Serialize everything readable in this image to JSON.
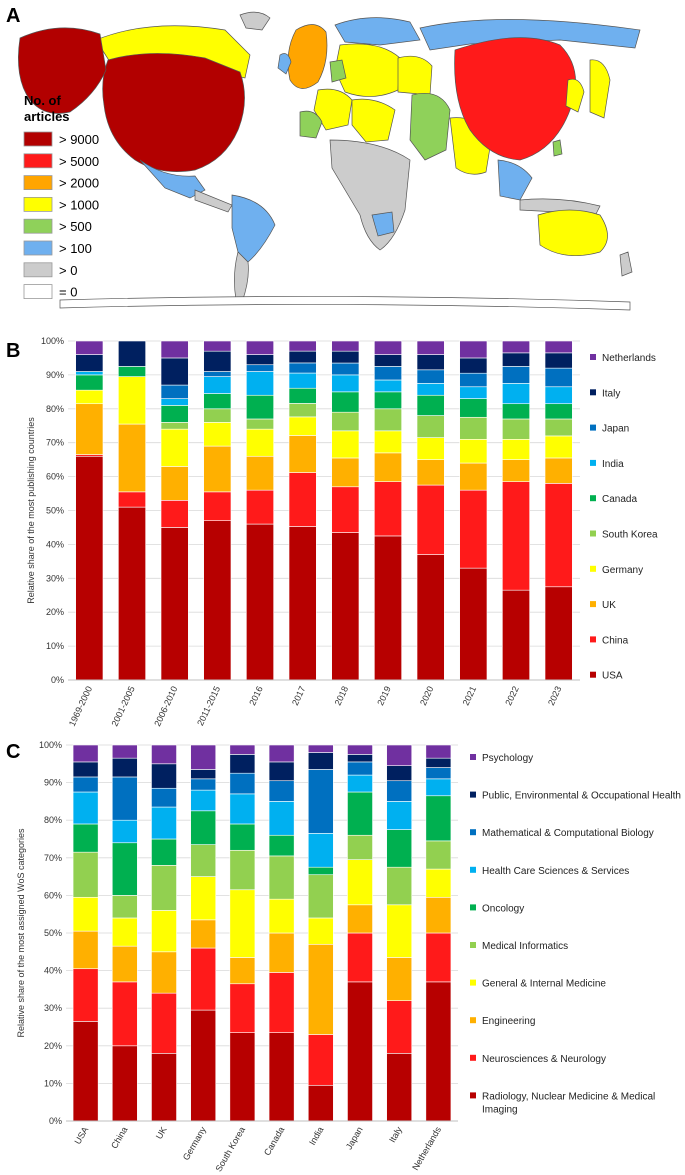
{
  "panels": {
    "a": "A",
    "b": "B",
    "c": "C"
  },
  "map_legend": {
    "title_line1": "No. of",
    "title_line2": "articles",
    "items": [
      {
        "label": "> 9000",
        "color": "#b20000"
      },
      {
        "label": "> 5000",
        "color": "#ff1a1a"
      },
      {
        "label": "> 2000",
        "color": "#ffa500"
      },
      {
        "label": "> 1000",
        "color": "#ffff00"
      },
      {
        "label": "> 500",
        "color": "#8fd15a"
      },
      {
        "label": "> 100",
        "color": "#6fb0ef"
      },
      {
        "label": "> 0",
        "color": "#cccccc"
      },
      {
        "label": "= 0",
        "color": "#ffffff"
      }
    ]
  },
  "chart_data": [
    {
      "type": "bar",
      "stacked": true,
      "ylabel": "Relative share of the most publishing countries",
      "ylim": [
        0,
        100
      ],
      "yticks": [
        "0%",
        "10%",
        "20%",
        "30%",
        "40%",
        "50%",
        "60%",
        "70%",
        "80%",
        "90%",
        "100%"
      ],
      "categories": [
        "1969-2000",
        "2001-2005",
        "2006-2010",
        "2011-2015",
        "2016",
        "2017",
        "2018",
        "2019",
        "2020",
        "2021",
        "2022",
        "2023"
      ],
      "series": [
        {
          "name": "USA",
          "color": "#b70000",
          "values": [
            66,
            51,
            45,
            47,
            46,
            45.5,
            43.5,
            42.5,
            37,
            33,
            26.5,
            27.5
          ]
        },
        {
          "name": "China",
          "color": "#ff1a1a",
          "values": [
            0.5,
            4.5,
            8,
            8.5,
            10,
            16,
            13.5,
            16,
            20.5,
            23,
            32,
            30.5
          ]
        },
        {
          "name": "UK",
          "color": "#ffb000",
          "values": [
            15,
            20,
            10,
            13.5,
            10,
            11,
            8.5,
            8.5,
            7.5,
            8,
            6.5,
            7.5
          ]
        },
        {
          "name": "Germany",
          "color": "#ffff00",
          "values": [
            4,
            14,
            11,
            7,
            8,
            5.5,
            8,
            6.5,
            6.5,
            7,
            6,
            6.5
          ]
        },
        {
          "name": "South Korea",
          "color": "#92d050",
          "values": [
            0,
            0,
            2,
            4,
            3,
            4,
            5.5,
            6.5,
            6.5,
            6.5,
            6,
            5
          ]
        },
        {
          "name": "Canada",
          "color": "#00b050",
          "values": [
            4.5,
            3,
            5,
            4.5,
            7,
            4.5,
            6,
            5,
            6,
            5.5,
            4.5,
            4.5
          ]
        },
        {
          "name": "India",
          "color": "#00b0f0",
          "values": [
            1,
            0,
            2,
            5,
            7,
            4.5,
            5,
            3.5,
            3.5,
            3.5,
            6,
            5
          ]
        },
        {
          "name": "Japan",
          "color": "#0070c0",
          "values": [
            0,
            0,
            4,
            1.5,
            2,
            3,
            3.5,
            4,
            4,
            4,
            5,
            5.5
          ]
        },
        {
          "name": "Italy",
          "color": "#002060",
          "values": [
            5,
            7.5,
            8,
            6,
            3,
            3.5,
            3.5,
            3.5,
            4.5,
            4.5,
            4,
            4.5
          ]
        },
        {
          "name": "Netherlands",
          "color": "#7030a0",
          "values": [
            4,
            0,
            5,
            3,
            4,
            3,
            3,
            4,
            4,
            5,
            3.5,
            3.5
          ]
        }
      ]
    },
    {
      "type": "bar",
      "stacked": true,
      "ylabel": "Relative share of the most assigned WoS categories",
      "ylim": [
        0,
        100
      ],
      "yticks": [
        "0%",
        "10%",
        "20%",
        "30%",
        "40%",
        "50%",
        "60%",
        "70%",
        "80%",
        "90%",
        "100%"
      ],
      "categories": [
        "USA",
        "China",
        "UK",
        "Germany",
        "South Korea",
        "Canada",
        "India",
        "Japan",
        "Italy",
        "Netherlands"
      ],
      "series": [
        {
          "name": "Radiology, Nuclear Medicine & Medical Imaging",
          "color": "#b70000",
          "values": [
            26.5,
            20,
            18,
            29.5,
            23.5,
            23.5,
            9.5,
            37,
            18,
            37
          ]
        },
        {
          "name": "Neurosciences & Neurology",
          "color": "#ff1a1a",
          "values": [
            14,
            17,
            16,
            16.5,
            13,
            16,
            13.5,
            13,
            14,
            13
          ]
        },
        {
          "name": "Engineering",
          "color": "#ffb000",
          "values": [
            10,
            9.5,
            11,
            7.5,
            7,
            10.5,
            24,
            7.5,
            11.5,
            9.5
          ]
        },
        {
          "name": "General & Internal Medicine",
          "color": "#ffff00",
          "values": [
            9,
            7.5,
            11,
            11.5,
            18,
            9,
            7,
            12,
            14,
            7.5
          ]
        },
        {
          "name": "Medical Informatics",
          "color": "#92d050",
          "values": [
            12,
            6,
            12,
            8.5,
            10.5,
            11.5,
            11.5,
            6.5,
            10,
            7.5
          ]
        },
        {
          "name": "Oncology",
          "color": "#00b050",
          "values": [
            7.5,
            14,
            7,
            9,
            7,
            5.5,
            2,
            11.5,
            10,
            12
          ]
        },
        {
          "name": "Health Care Sciences & Services",
          "color": "#00b0f0",
          "values": [
            8.5,
            6,
            8.5,
            5.5,
            8,
            9,
            9,
            4.5,
            7.5,
            4.5
          ]
        },
        {
          "name": "Mathematical & Computational Biology",
          "color": "#0070c0",
          "values": [
            4,
            11.5,
            5,
            3,
            5.5,
            5.5,
            17,
            3.5,
            5.5,
            3
          ]
        },
        {
          "name": "Public, Environmental & Occupational Health",
          "color": "#002060",
          "values": [
            4,
            5,
            6.5,
            2.5,
            5,
            5,
            4.5,
            2,
            4,
            2.5
          ]
        },
        {
          "name": "Psychology",
          "color": "#7030a0",
          "values": [
            4.5,
            3.5,
            5,
            6.5,
            2.5,
            4.5,
            2,
            2.5,
            5.5,
            3.5
          ]
        }
      ]
    }
  ]
}
